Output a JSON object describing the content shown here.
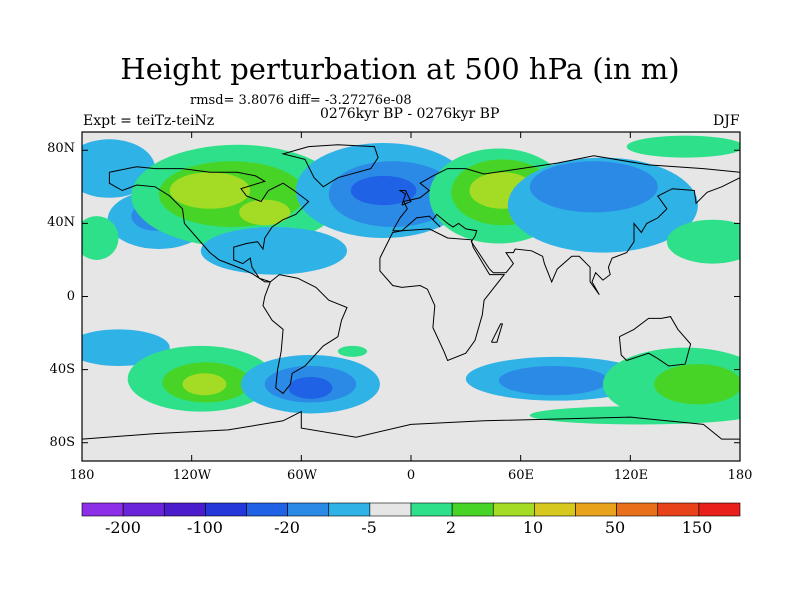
{
  "title": "Height perturbation at 500 hPa (in m)",
  "stats": "rmsd= 3.8076 diff= -3.27276e-08",
  "period": "0276kyr BP - 0276kyr BP",
  "experiment": "Expt = teiTz-teiNz",
  "season": "DJF",
  "y_ticks": [
    "80N",
    "40N",
    "0",
    "40S",
    "80S"
  ],
  "x_ticks": [
    "180",
    "120W",
    "60W",
    "0",
    "60E",
    "120E",
    "180"
  ],
  "colorbar": {
    "colors": [
      "#8c2fe6",
      "#6a24d9",
      "#4a1ccc",
      "#2438d9",
      "#1f62e6",
      "#2b8ae6",
      "#2fb2e6",
      "#e6e6e6",
      "#2fe08a",
      "#48d426",
      "#a4dc25",
      "#d6c81f",
      "#e8a21c",
      "#e8701a",
      "#e8421a",
      "#e81f1a"
    ],
    "labels": [
      "-200",
      "-100",
      "-20",
      "-5",
      "2",
      "10",
      "50",
      "150"
    ]
  },
  "map": {
    "background": "#e6e6e6",
    "blobs": [
      {
        "cx": -165,
        "cy": 70,
        "rx": 25,
        "ry": 16,
        "color": "#2fb2e6"
      },
      {
        "cx": -138,
        "cy": 42,
        "rx": 28,
        "ry": 16,
        "color": "#2fb2e6"
      },
      {
        "cx": -140,
        "cy": 44,
        "rx": 13,
        "ry": 8,
        "color": "#2b8ae6"
      },
      {
        "cx": -172,
        "cy": 32,
        "rx": 12,
        "ry": 12,
        "color": "#2fe08a"
      },
      {
        "cx": -95,
        "cy": 55,
        "rx": 58,
        "ry": 28,
        "color": "#2fe08a"
      },
      {
        "cx": -98,
        "cy": 56,
        "rx": 40,
        "ry": 18,
        "color": "#48d426"
      },
      {
        "cx": -110,
        "cy": 58,
        "rx": 22,
        "ry": 10,
        "color": "#a4dc25"
      },
      {
        "cx": -80,
        "cy": 46,
        "rx": 14,
        "ry": 7,
        "color": "#a4dc25"
      },
      {
        "cx": -75,
        "cy": 25,
        "rx": 40,
        "ry": 13,
        "color": "#2fb2e6"
      },
      {
        "cx": -15,
        "cy": 58,
        "rx": 48,
        "ry": 26,
        "color": "#2fb2e6"
      },
      {
        "cx": -10,
        "cy": 56,
        "rx": 35,
        "ry": 18,
        "color": "#2b8ae6"
      },
      {
        "cx": -15,
        "cy": 58,
        "rx": 18,
        "ry": 8,
        "color": "#1f62e6"
      },
      {
        "cx": 48,
        "cy": 55,
        "rx": 38,
        "ry": 26,
        "color": "#2fe08a"
      },
      {
        "cx": 50,
        "cy": 57,
        "rx": 28,
        "ry": 18,
        "color": "#48d426"
      },
      {
        "cx": 50,
        "cy": 58,
        "rx": 18,
        "ry": 10,
        "color": "#a4dc25"
      },
      {
        "cx": 105,
        "cy": 50,
        "rx": 52,
        "ry": 26,
        "color": "#2fb2e6"
      },
      {
        "cx": 100,
        "cy": 60,
        "rx": 35,
        "ry": 14,
        "color": "#2b8ae6"
      },
      {
        "cx": 150,
        "cy": 82,
        "rx": 32,
        "ry": 6,
        "color": "#2fe08a"
      },
      {
        "cx": 165,
        "cy": 30,
        "rx": 25,
        "ry": 12,
        "color": "#2fe08a"
      },
      {
        "cx": -160,
        "cy": -28,
        "rx": 28,
        "ry": 10,
        "color": "#2fb2e6"
      },
      {
        "cx": -115,
        "cy": -45,
        "rx": 40,
        "ry": 18,
        "color": "#2fe08a"
      },
      {
        "cx": -112,
        "cy": -47,
        "rx": 24,
        "ry": 11,
        "color": "#48d426"
      },
      {
        "cx": -113,
        "cy": -48,
        "rx": 12,
        "ry": 6,
        "color": "#a4dc25"
      },
      {
        "cx": -55,
        "cy": -48,
        "rx": 38,
        "ry": 16,
        "color": "#2fb2e6"
      },
      {
        "cx": -55,
        "cy": -48,
        "rx": 25,
        "ry": 10,
        "color": "#2b8ae6"
      },
      {
        "cx": -55,
        "cy": -50,
        "rx": 12,
        "ry": 6,
        "color": "#1f62e6"
      },
      {
        "cx": -32,
        "cy": -30,
        "rx": 8,
        "ry": 3,
        "color": "#2fe08a"
      },
      {
        "cx": 80,
        "cy": -45,
        "rx": 50,
        "ry": 12,
        "color": "#2fb2e6"
      },
      {
        "cx": 78,
        "cy": -46,
        "rx": 30,
        "ry": 8,
        "color": "#2b8ae6"
      },
      {
        "cx": 150,
        "cy": -48,
        "rx": 45,
        "ry": 20,
        "color": "#2fe08a"
      },
      {
        "cx": 157,
        "cy": -48,
        "rx": 24,
        "ry": 11,
        "color": "#48d426"
      },
      {
        "cx": 125,
        "cy": -65,
        "rx": 60,
        "ry": 5,
        "color": "#2fe08a"
      }
    ],
    "coastlines": [
      [
        [
          -165,
          68
        ],
        [
          -150,
          71
        ],
        [
          -140,
          70
        ],
        [
          -125,
          70
        ],
        [
          -110,
          68
        ],
        [
          -95,
          68
        ],
        [
          -85,
          66
        ],
        [
          -80,
          63
        ],
        [
          -93,
          59
        ],
        [
          -90,
          55
        ],
        [
          -82,
          52
        ],
        [
          -78,
          58
        ],
        [
          -70,
          62
        ],
        [
          -64,
          58
        ],
        [
          -56,
          52
        ],
        [
          -63,
          45
        ],
        [
          -70,
          42
        ],
        [
          -76,
          38
        ],
        [
          -80,
          32
        ],
        [
          -81,
          26
        ],
        [
          -84,
          30
        ],
        [
          -90,
          29
        ],
        [
          -97,
          27
        ],
        [
          -97,
          20
        ],
        [
          -92,
          18
        ],
        [
          -88,
          21
        ],
        [
          -87,
          16
        ],
        [
          -83,
          10
        ],
        [
          -77,
          8
        ],
        [
          -80,
          8
        ],
        [
          -86,
          12
        ],
        [
          -92,
          15
        ],
        [
          -105,
          20
        ],
        [
          -110,
          24
        ],
        [
          -117,
          32
        ],
        [
          -124,
          40
        ],
        [
          -125,
          48
        ],
        [
          -132,
          55
        ],
        [
          -140,
          60
        ],
        [
          -150,
          61
        ],
        [
          -158,
          58
        ],
        [
          -165,
          62
        ],
        [
          -165,
          68
        ]
      ],
      [
        [
          -56,
          82
        ],
        [
          -40,
          83
        ],
        [
          -20,
          82
        ],
        [
          -18,
          76
        ],
        [
          -22,
          70
        ],
        [
          -40,
          65
        ],
        [
          -48,
          60
        ],
        [
          -53,
          65
        ],
        [
          -58,
          75
        ],
        [
          -70,
          78
        ],
        [
          -56,
          82
        ]
      ],
      [
        [
          -77,
          8
        ],
        [
          -72,
          12
        ],
        [
          -62,
          10
        ],
        [
          -52,
          5
        ],
        [
          -45,
          -2
        ],
        [
          -35,
          -6
        ],
        [
          -38,
          -13
        ],
        [
          -40,
          -22
        ],
        [
          -48,
          -27
        ],
        [
          -58,
          -38
        ],
        [
          -65,
          -42
        ],
        [
          -66,
          -48
        ],
        [
          -70,
          -53
        ],
        [
          -74,
          -50
        ],
        [
          -73,
          -40
        ],
        [
          -71,
          -30
        ],
        [
          -70,
          -18
        ],
        [
          -76,
          -13
        ],
        [
          -81,
          -5
        ],
        [
          -80,
          0
        ],
        [
          -77,
          8
        ]
      ],
      [
        [
          -10,
          36
        ],
        [
          -6,
          43
        ],
        [
          -2,
          48
        ],
        [
          -4,
          52
        ],
        [
          5,
          54
        ],
        [
          10,
          58
        ],
        [
          5,
          62
        ],
        [
          12,
          66
        ],
        [
          20,
          70
        ],
        [
          30,
          70
        ],
        [
          40,
          67
        ],
        [
          60,
          70
        ],
        [
          80,
          73
        ],
        [
          100,
          77
        ],
        [
          130,
          72
        ],
        [
          160,
          70
        ],
        [
          180,
          68
        ]
      ],
      [
        [
          180,
          65
        ],
        [
          170,
          60
        ],
        [
          162,
          57
        ],
        [
          156,
          51
        ],
        [
          155,
          58
        ],
        [
          143,
          59
        ],
        [
          135,
          55
        ],
        [
          140,
          48
        ],
        [
          135,
          43
        ],
        [
          129,
          40
        ],
        [
          126,
          35
        ],
        [
          122,
          40
        ],
        [
          122,
          30
        ],
        [
          118,
          24
        ],
        [
          110,
          21
        ],
        [
          108,
          16
        ],
        [
          109,
          12
        ],
        [
          105,
          9
        ],
        [
          101,
          13
        ],
        [
          99,
          8
        ],
        [
          103,
          1
        ],
        [
          98,
          8
        ],
        [
          98,
          16
        ],
        [
          92,
          22
        ],
        [
          88,
          22
        ],
        [
          80,
          15
        ],
        [
          77,
          8
        ],
        [
          73,
          18
        ],
        [
          72,
          22
        ],
        [
          66,
          25
        ],
        [
          57,
          26
        ],
        [
          56,
          24
        ],
        [
          52,
          24
        ],
        [
          56,
          18
        ],
        [
          52,
          13
        ],
        [
          45,
          13
        ],
        [
          43,
          15
        ],
        [
          39,
          21
        ],
        [
          35,
          27
        ],
        [
          33,
          30
        ],
        [
          35,
          33
        ],
        [
          36,
          36
        ],
        [
          30,
          37
        ],
        [
          26,
          40
        ],
        [
          23,
          38
        ],
        [
          20,
          40
        ],
        [
          14,
          45
        ],
        [
          12,
          42
        ],
        [
          16,
          38
        ],
        [
          10,
          44
        ],
        [
          3,
          43
        ],
        [
          -5,
          36
        ],
        [
          -10,
          36
        ]
      ],
      [
        [
          -17,
          21
        ],
        [
          -10,
          35
        ],
        [
          -5,
          36
        ],
        [
          10,
          37
        ],
        [
          20,
          32
        ],
        [
          33,
          31
        ],
        [
          34,
          27
        ],
        [
          43,
          12
        ],
        [
          51,
          12
        ],
        [
          40,
          -2
        ],
        [
          39,
          -10
        ],
        [
          35,
          -24
        ],
        [
          30,
          -31
        ],
        [
          20,
          -35
        ],
        [
          18,
          -30
        ],
        [
          12,
          -17
        ],
        [
          13,
          -5
        ],
        [
          9,
          4
        ],
        [
          5,
          6
        ],
        [
          -5,
          5
        ],
        [
          -10,
          6
        ],
        [
          -17,
          14
        ],
        [
          -17,
          21
        ]
      ],
      [
        [
          114,
          -22
        ],
        [
          122,
          -18
        ],
        [
          130,
          -12
        ],
        [
          137,
          -12
        ],
        [
          142,
          -11
        ],
        [
          146,
          -18
        ],
        [
          153,
          -26
        ],
        [
          150,
          -37
        ],
        [
          141,
          -38
        ],
        [
          135,
          -34
        ],
        [
          130,
          -31
        ],
        [
          118,
          -35
        ],
        [
          115,
          -32
        ],
        [
          114,
          -22
        ]
      ],
      [
        [
          -5,
          50
        ],
        [
          -3,
          56
        ],
        [
          -6,
          58
        ],
        [
          -3,
          58
        ],
        [
          0,
          52
        ],
        [
          -5,
          50
        ]
      ],
      [
        [
          44,
          -25
        ],
        [
          49,
          -15
        ],
        [
          50,
          -15
        ],
        [
          47,
          -25
        ],
        [
          44,
          -25
        ]
      ],
      [
        [
          -180,
          -78
        ],
        [
          -140,
          -75
        ],
        [
          -100,
          -73
        ],
        [
          -70,
          -68
        ],
        [
          -60,
          -63
        ],
        [
          -60,
          -72
        ],
        [
          -30,
          -77
        ],
        [
          0,
          -70
        ],
        [
          40,
          -68
        ],
        [
          80,
          -67
        ],
        [
          120,
          -66
        ],
        [
          160,
          -70
        ],
        [
          170,
          -78
        ],
        [
          180,
          -78
        ]
      ]
    ]
  }
}
